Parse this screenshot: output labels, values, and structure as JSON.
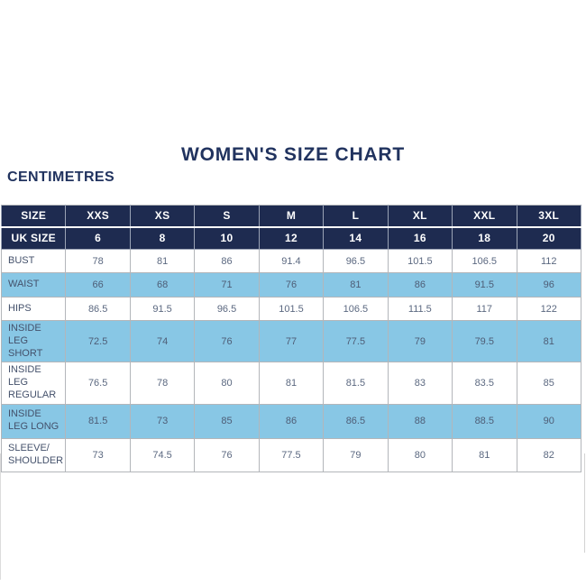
{
  "page": {
    "title": "WOMEN'S SIZE CHART",
    "unit_label": "CENTIMETRES"
  },
  "colors": {
    "navy_header": "#1e2b50",
    "light_blue_row": "#88c7e5",
    "title_text": "#21335f",
    "cell_text": "#5b6880",
    "border": "#b3b6ba"
  },
  "chart_data": {
    "type": "table",
    "title": "WOMEN'S SIZE CHART",
    "unit": "CENTIMETRES",
    "columns": [
      "SIZE",
      "XXS",
      "XS",
      "S",
      "M",
      "L",
      "XL",
      "XXL",
      "3XL"
    ],
    "uk_size_row": {
      "label": "UK SIZE",
      "values": [
        "6",
        "8",
        "10",
        "12",
        "14",
        "16",
        "18",
        "20"
      ]
    },
    "rows": [
      {
        "label": "BUST",
        "values": [
          "78",
          "81",
          "86",
          "91.4",
          "96.5",
          "101.5",
          "106.5",
          "112"
        ],
        "shaded": false
      },
      {
        "label": "WAIST",
        "values": [
          "66",
          "68",
          "71",
          "76",
          "81",
          "86",
          "91.5",
          "96"
        ],
        "shaded": true
      },
      {
        "label": "HIPS",
        "values": [
          "86.5",
          "91.5",
          "96.5",
          "101.5",
          "106.5",
          "111.5",
          "117",
          "122"
        ],
        "shaded": false
      },
      {
        "label": "INSIDE LEG SHORT",
        "values": [
          "72.5",
          "74",
          "76",
          "77",
          "77.5",
          "79",
          "79.5",
          "81"
        ],
        "shaded": true
      },
      {
        "label": "INSIDE LEG REGULAR",
        "values": [
          "76.5",
          "78",
          "80",
          "81",
          "81.5",
          "83",
          "83.5",
          "85"
        ],
        "shaded": false
      },
      {
        "label": "INSIDE LEG LONG",
        "values": [
          "81.5",
          "73",
          "85",
          "86",
          "86.5",
          "88",
          "88.5",
          "90"
        ],
        "shaded": true
      },
      {
        "label": "SLEEVE/ SHOULDER",
        "values": [
          "73",
          "74.5",
          "76",
          "77.5",
          "79",
          "80",
          "81",
          "82"
        ],
        "shaded": false
      }
    ]
  }
}
